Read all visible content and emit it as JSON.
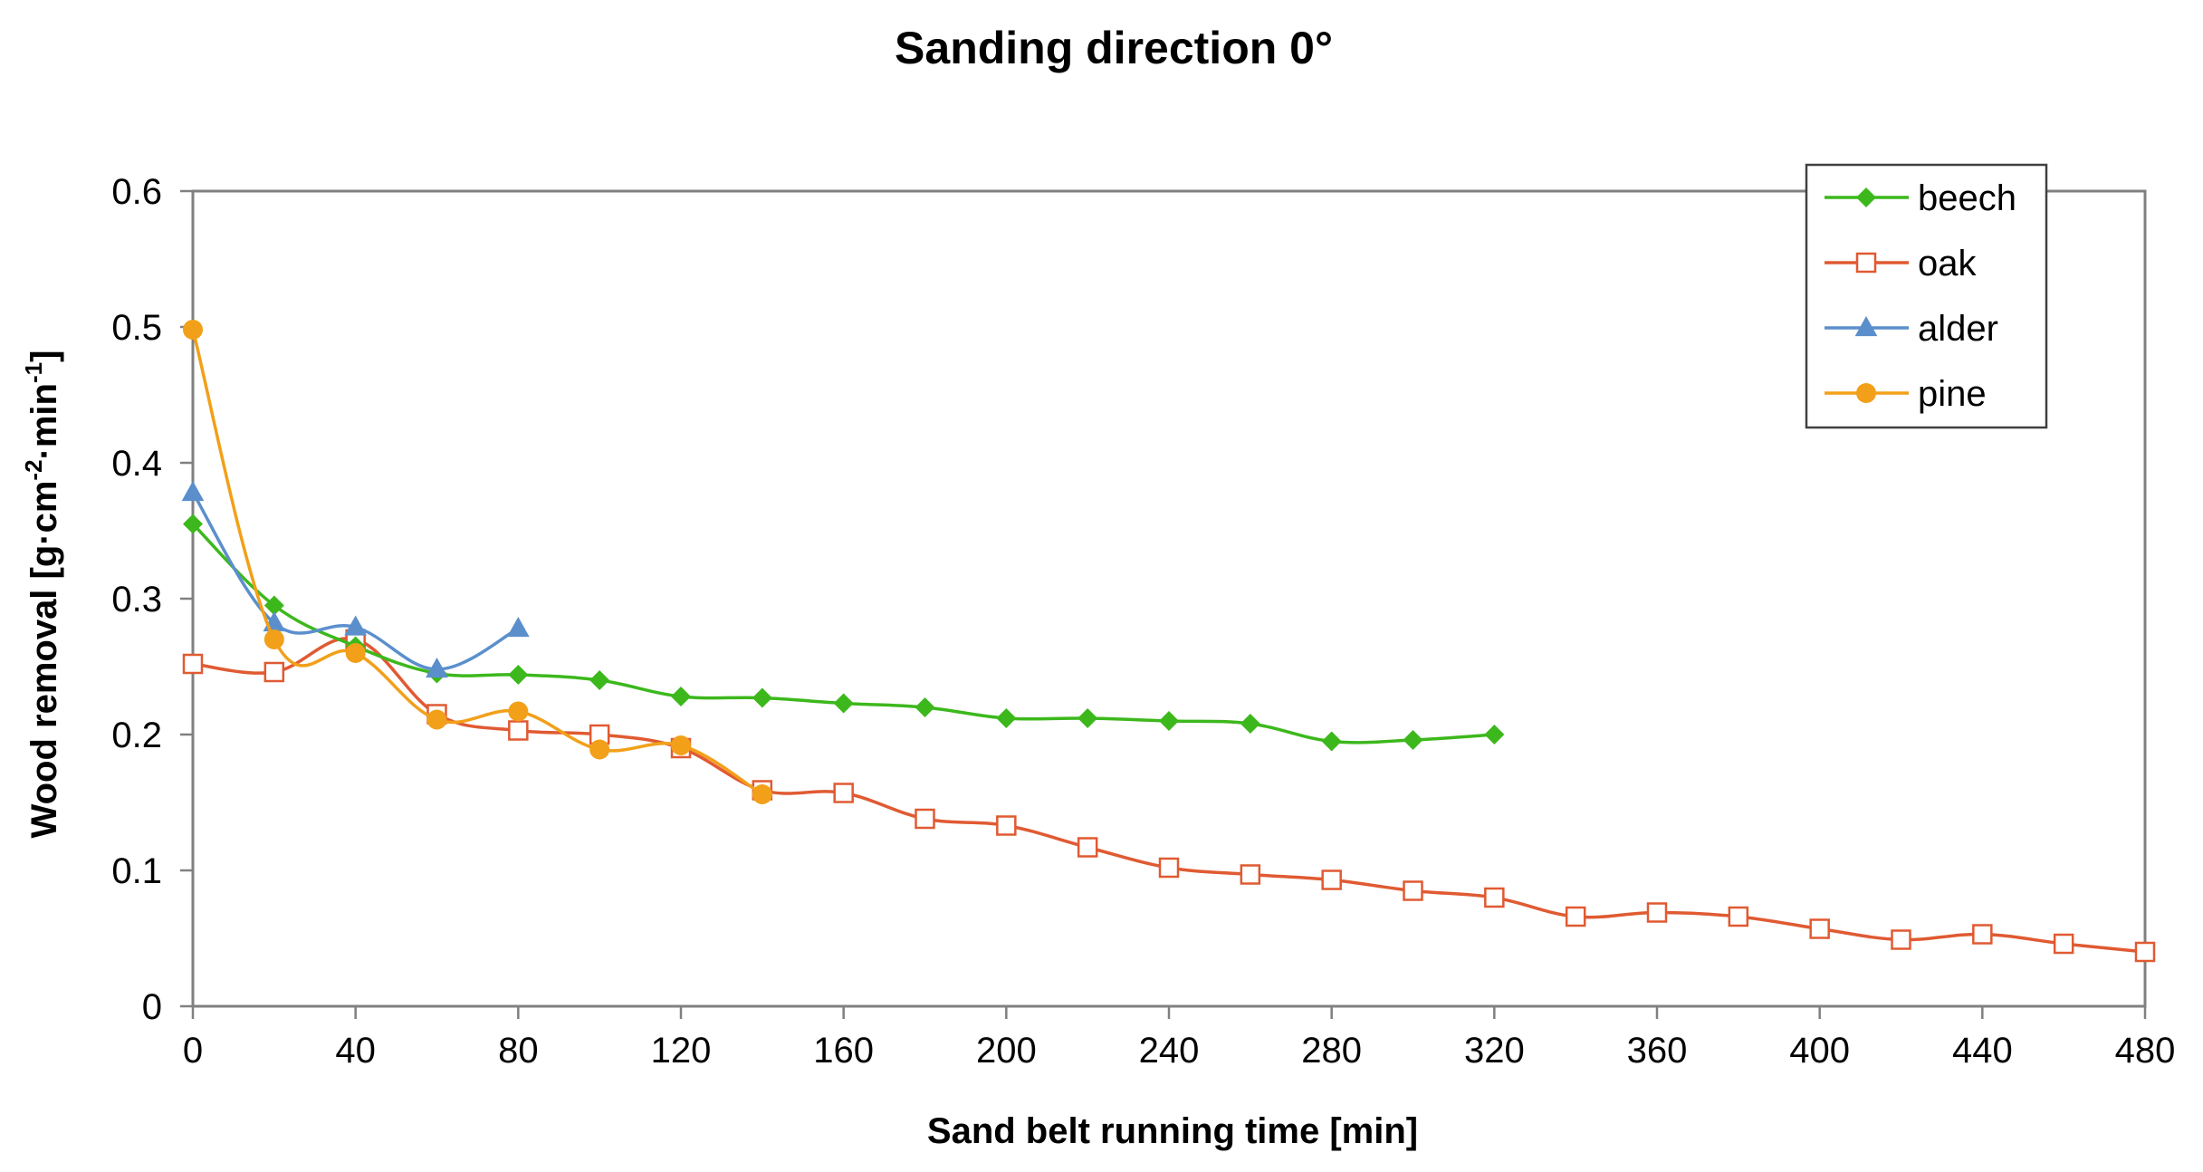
{
  "chart_data": {
    "type": "line",
    "title": "Sanding direction 0°",
    "xlabel": "Sand belt running time [min]",
    "ylabel": {
      "base": "Wood removal [g·cm",
      "sup1": "-2",
      "mid": "·min",
      "sup2": "-1",
      "end": "]"
    },
    "xlim": [
      0,
      480
    ],
    "ylim": [
      0,
      0.6
    ],
    "xticks": [
      0,
      40,
      80,
      120,
      160,
      200,
      240,
      280,
      320,
      360,
      400,
      440,
      480
    ],
    "yticks": [
      0,
      0.1,
      0.2,
      0.3,
      0.4,
      0.5,
      0.6
    ],
    "ytick_labels": [
      "0",
      "0.1",
      "0.2",
      "0.3",
      "0.4",
      "0.5",
      "0.6"
    ],
    "legend_position": "top-right",
    "series": [
      {
        "name": "beech",
        "color": "#3cb81c",
        "marker": "diamond",
        "x": [
          0,
          20,
          40,
          60,
          80,
          100,
          120,
          140,
          160,
          180,
          200,
          220,
          240,
          260,
          280,
          300,
          320
        ],
        "values": [
          0.355,
          0.295,
          0.265,
          0.245,
          0.244,
          0.24,
          0.228,
          0.227,
          0.223,
          0.22,
          0.212,
          0.212,
          0.21,
          0.208,
          0.195,
          0.196,
          0.2
        ]
      },
      {
        "name": "oak",
        "color": "#e05a32",
        "marker": "square-open",
        "x": [
          0,
          20,
          40,
          60,
          80,
          100,
          120,
          140,
          160,
          180,
          200,
          220,
          240,
          260,
          280,
          300,
          320,
          340,
          360,
          380,
          400,
          420,
          440,
          460,
          480
        ],
        "values": [
          0.252,
          0.246,
          0.27,
          0.215,
          0.203,
          0.2,
          0.19,
          0.159,
          0.157,
          0.138,
          0.133,
          0.117,
          0.102,
          0.097,
          0.093,
          0.085,
          0.08,
          0.066,
          0.069,
          0.066,
          0.057,
          0.049,
          0.053,
          0.046,
          0.04
        ]
      },
      {
        "name": "alder",
        "color": "#5b8fcc",
        "marker": "triangle",
        "x": [
          0,
          20,
          40,
          60,
          80
        ],
        "values": [
          0.378,
          0.282,
          0.279,
          0.248,
          0.278
        ]
      },
      {
        "name": "pine",
        "color": "#f2a019",
        "marker": "circle",
        "x": [
          0,
          20,
          40,
          60,
          80,
          100,
          120,
          140
        ],
        "values": [
          0.498,
          0.27,
          0.26,
          0.211,
          0.217,
          0.189,
          0.192,
          0.156
        ]
      }
    ]
  }
}
